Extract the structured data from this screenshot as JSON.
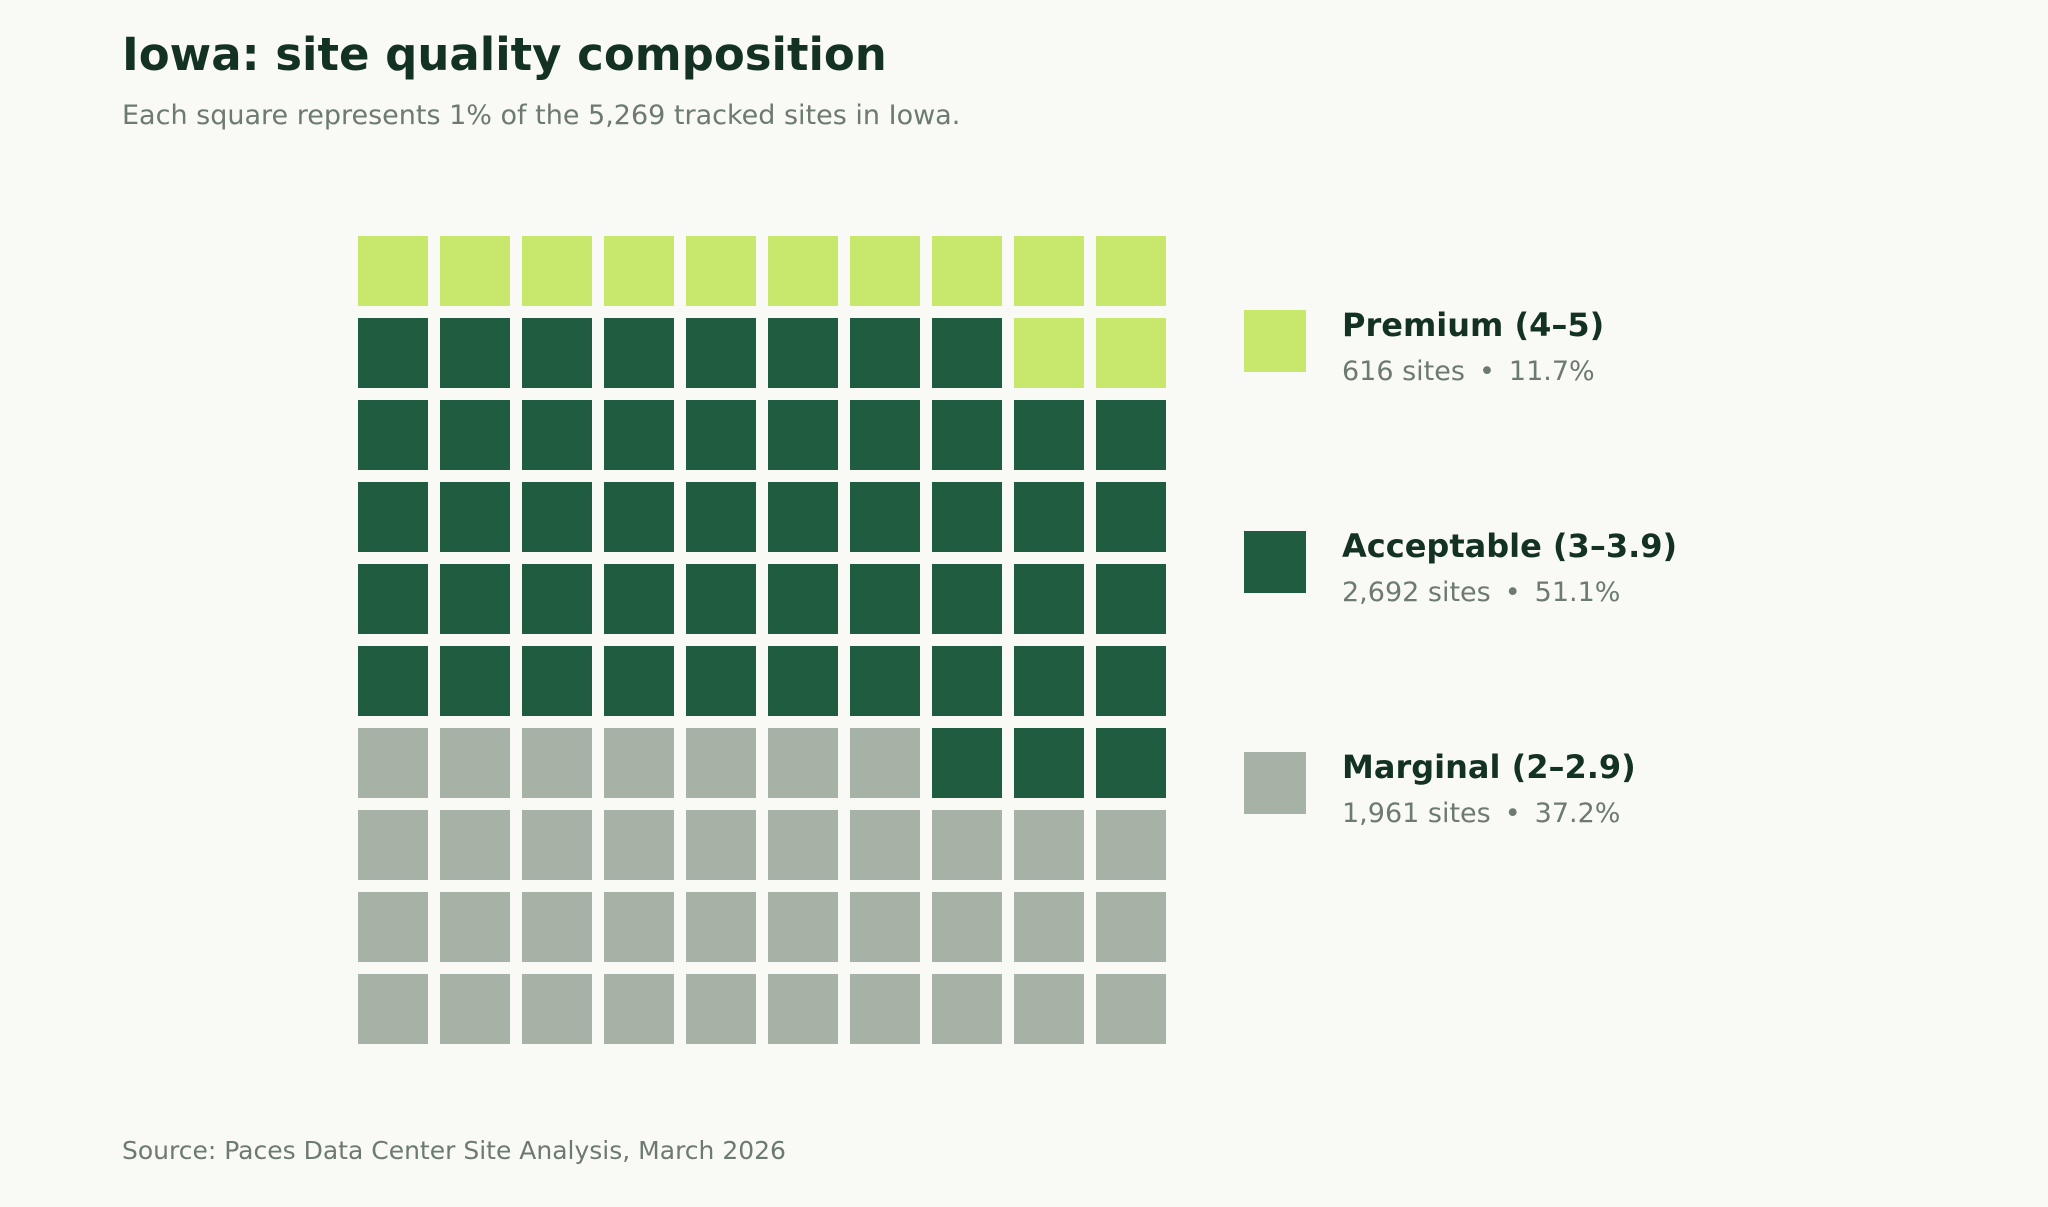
{
  "title": "Iowa: site quality composition",
  "subtitle": "Each square represents 1% of the 5,269 tracked sites in Iowa.",
  "source": "Source: Paces Data Center Site Analysis, March 2026",
  "chart_data": {
    "type": "waffle",
    "grid": {
      "rows": 10,
      "cols": 10,
      "unit_percent": 1
    },
    "total_sites": 5269,
    "categories": [
      {
        "name": "Premium (4–5)",
        "sites_label": "616 sites",
        "percent_label": "11.7%",
        "sites": 616,
        "percent": 11.7,
        "squares": 12,
        "color": "#c7e86c"
      },
      {
        "name": "Acceptable (3–3.9)",
        "sites_label": "2,692 sites",
        "percent_label": "51.1%",
        "sites": 2692,
        "percent": 51.1,
        "squares": 51,
        "color": "#1f5c40"
      },
      {
        "name": "Marginal (2–2.9)",
        "sites_label": "1,961 sites",
        "percent_label": "37.2%",
        "sites": 1961,
        "percent": 37.2,
        "squares": 37,
        "color": "#a7b2a6"
      }
    ],
    "separator": "•"
  }
}
